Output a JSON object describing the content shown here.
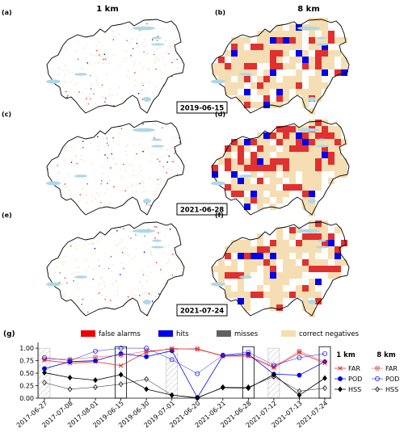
{
  "maps": {
    "col_titles": [
      "1 km",
      "8 km"
    ],
    "panels": [
      {
        "left_label": "(a)",
        "right_label": "(b)",
        "date": "2019-06-15"
      },
      {
        "left_label": "(c)",
        "right_label": "(d)",
        "date": "2021-06-28"
      },
      {
        "left_label": "(e)",
        "right_label": "(f)",
        "date": "2021-07-24"
      }
    ]
  },
  "legend_top": [
    {
      "label": "false alarms",
      "color": "#ee0000"
    },
    {
      "label": "hits",
      "color": "#0000ee"
    },
    {
      "label": "misses",
      "color": "#606060"
    },
    {
      "label": "correct negatives",
      "color": "#f5deb3"
    }
  ],
  "colors": {
    "lake": "#add8e6",
    "border": "#000000",
    "far": "#e03030",
    "pod": "#0000ee",
    "hss": "#000000",
    "highlight_box": "#000000",
    "hatch": "#bbbbbb"
  },
  "chart_data": {
    "type": "line",
    "panel_label": "(g)",
    "categories": [
      "2017-06-27",
      "2017-07-08",
      "2017-08-01",
      "2019-06-15",
      "2019-06-30",
      "2019-07-01",
      "2021-06-20",
      "2021-06-21",
      "2021-06-28",
      "2021-07-12",
      "2021-07-13",
      "2021-07-24"
    ],
    "ylim": [
      0,
      1.05
    ],
    "yticks": [
      "0.00",
      "0.25",
      "0.50",
      "0.75",
      "1.00"
    ],
    "hatched_categories": [
      "2017-06-27",
      "2019-07-01",
      "2021-07-12"
    ],
    "boxed_categories": [
      "2019-06-15",
      "2021-06-28",
      "2021-07-24"
    ],
    "legend_headers": [
      "1 km",
      "8 km"
    ],
    "series": [
      {
        "name": "FAR",
        "resolution": "1 km",
        "style": "solid",
        "marker": "x",
        "values": [
          0.76,
          0.7,
          0.73,
          0.65,
          0.92,
          0.99,
          0.98,
          0.84,
          0.84,
          0.61,
          0.91,
          0.7
        ]
      },
      {
        "name": "POD",
        "resolution": "1 km",
        "style": "solid",
        "marker": "o",
        "values": [
          0.59,
          0.73,
          0.75,
          0.89,
          0.83,
          0.95,
          0.01,
          0.85,
          0.88,
          0.48,
          0.46,
          0.73
        ]
      },
      {
        "name": "HSS",
        "resolution": "1 km",
        "style": "solid",
        "marker": "d",
        "values": [
          0.51,
          0.41,
          0.36,
          0.47,
          0.18,
          0.06,
          0.01,
          0.21,
          0.2,
          0.47,
          0.06,
          0.4
        ]
      },
      {
        "name": "FAR",
        "resolution": "8 km",
        "style": "thin",
        "marker": "ox",
        "values": [
          0.78,
          0.78,
          0.82,
          0.86,
          0.94,
          0.98,
          0.99,
          0.85,
          0.86,
          0.63,
          0.94,
          0.73
        ]
      },
      {
        "name": "POD",
        "resolution": "8 km",
        "style": "thin",
        "marker": "o",
        "values": [
          0.81,
          0.75,
          0.94,
          1.0,
          1.0,
          0.77,
          0.49,
          0.86,
          0.92,
          0.66,
          0.81,
          0.89
        ]
      },
      {
        "name": "HSS",
        "resolution": "8 km",
        "style": "thin",
        "marker": "d",
        "values": [
          0.31,
          0.18,
          0.22,
          0.28,
          0.38,
          0.06,
          0.0,
          0.22,
          0.22,
          0.43,
          0.14,
          0.2
        ]
      }
    ]
  }
}
